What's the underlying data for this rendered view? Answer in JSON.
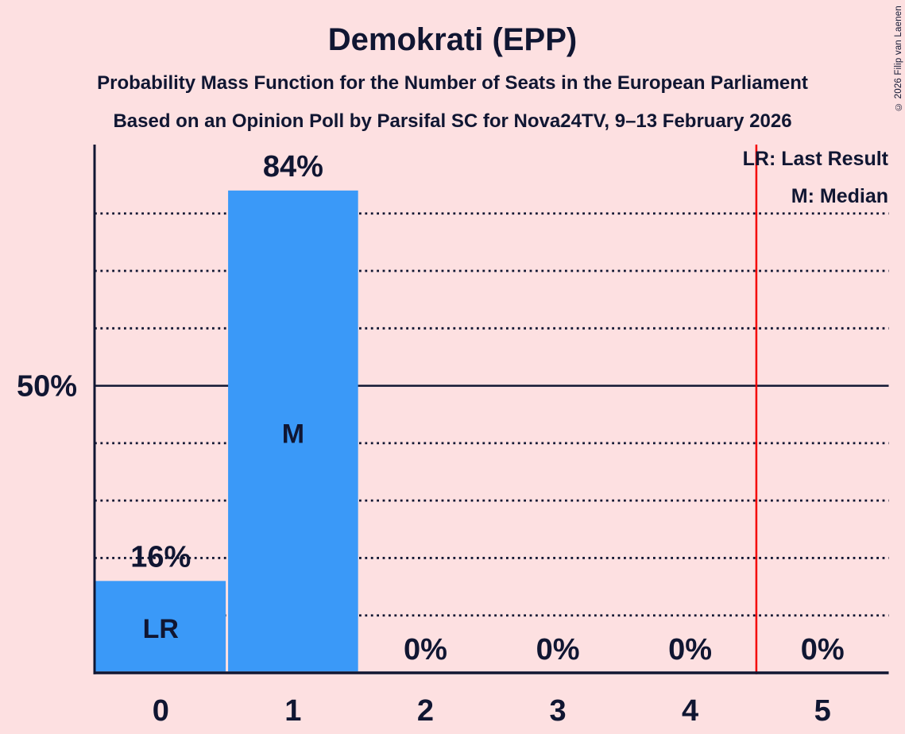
{
  "page": {
    "copyright": "© 2026 Filip van Laenen",
    "colors": {
      "background": "#fde0e1",
      "ink": "#101632",
      "bar": "#3a99f8",
      "reference_line": "#f40000",
      "bar_label": "#fde0e1"
    }
  },
  "header": {
    "title": "Demokrati (EPP)",
    "subtitle_line1": "Probability Mass Function for the Number of Seats in the European Parliament",
    "subtitle_line2": "Based on an Opinion Poll by Parsifal SC for Nova24TV, 9–13 February 2026"
  },
  "legend": {
    "last_result": "LR: Last Result",
    "median": "M: Median"
  },
  "chart_data": {
    "type": "bar",
    "title": "Demokrati (EPP)",
    "categories": [
      "0",
      "1",
      "2",
      "3",
      "4",
      "5"
    ],
    "values": [
      16,
      84,
      0,
      0,
      0,
      0
    ],
    "value_labels": [
      "16%",
      "84%",
      "0%",
      "0%",
      "0%",
      "0%"
    ],
    "ylim": [
      0,
      92
    ],
    "y_tick": {
      "value": 50,
      "label": "50%"
    },
    "dotted_gridlines": [
      10,
      20,
      30,
      40,
      60,
      70,
      80
    ],
    "solid_gridline": 50,
    "reference_line_x": 4.5,
    "bar_annotations": [
      {
        "category_index": 0,
        "label": "LR"
      },
      {
        "category_index": 1,
        "label": "M"
      }
    ],
    "legend_position": "top-right",
    "grid": "dotted-horizontal"
  }
}
